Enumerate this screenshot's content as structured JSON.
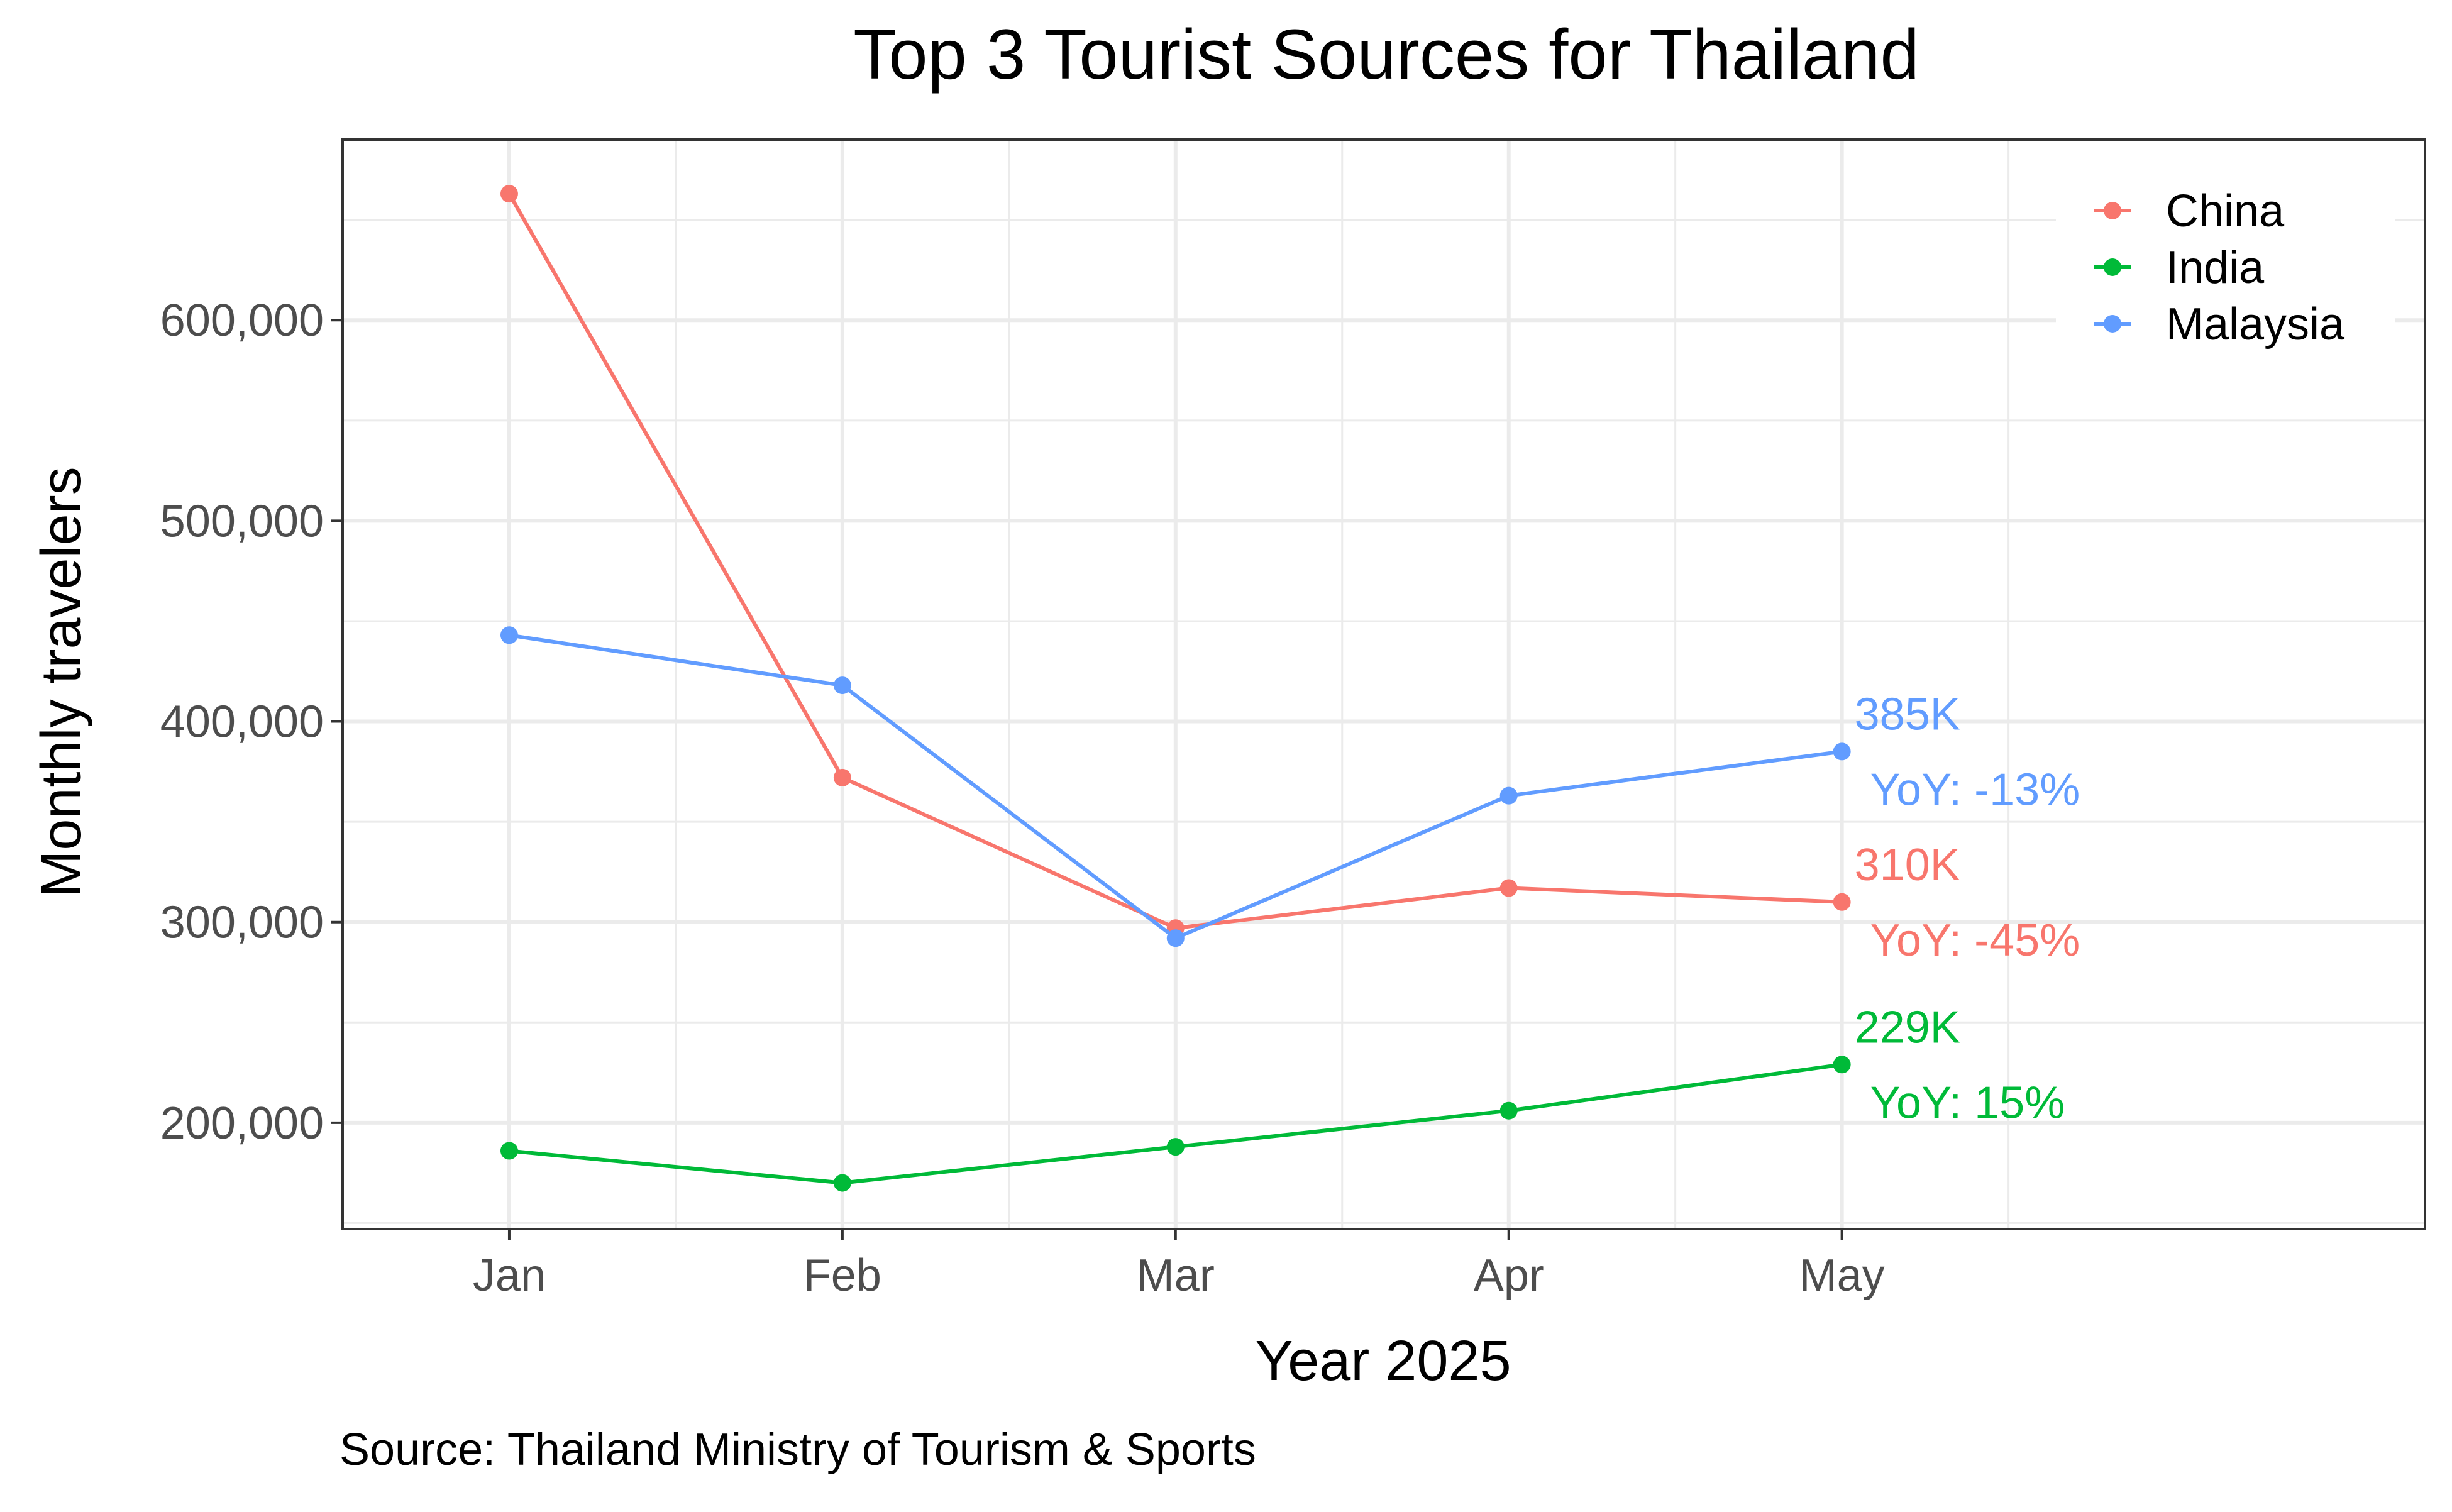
{
  "chart_data": {
    "type": "line",
    "title": "Top 3 Tourist Sources for Thailand",
    "xlabel": "Year 2025",
    "ylabel": "Monthly travelers",
    "caption": "Source: Thailand Ministry of Tourism & Sports",
    "categories": [
      "Jan",
      "Feb",
      "Mar",
      "Apr",
      "May"
    ],
    "yticks": [
      200000,
      300000,
      400000,
      500000,
      600000
    ],
    "ytick_labels": [
      "200,000",
      "300,000",
      "400,000",
      "500,000",
      "600,000"
    ],
    "ylim": [
      147000,
      690000
    ],
    "grid": true,
    "legend_position": "top-right",
    "series": [
      {
        "name": "China",
        "color": "#F8766D",
        "values": [
          663000,
          372000,
          297000,
          317000,
          310000
        ],
        "end_label": "310K",
        "yoy_label": "YoY: -45%"
      },
      {
        "name": "India",
        "color": "#00BA38",
        "values": [
          186000,
          170000,
          188000,
          206000,
          229000
        ],
        "end_label": "229K",
        "yoy_label": "YoY: 15%"
      },
      {
        "name": "Malaysia",
        "color": "#619CFF",
        "values": [
          443000,
          418000,
          292000,
          363000,
          385000
        ],
        "end_label": "385K",
        "yoy_label": "YoY: -13%"
      }
    ]
  }
}
